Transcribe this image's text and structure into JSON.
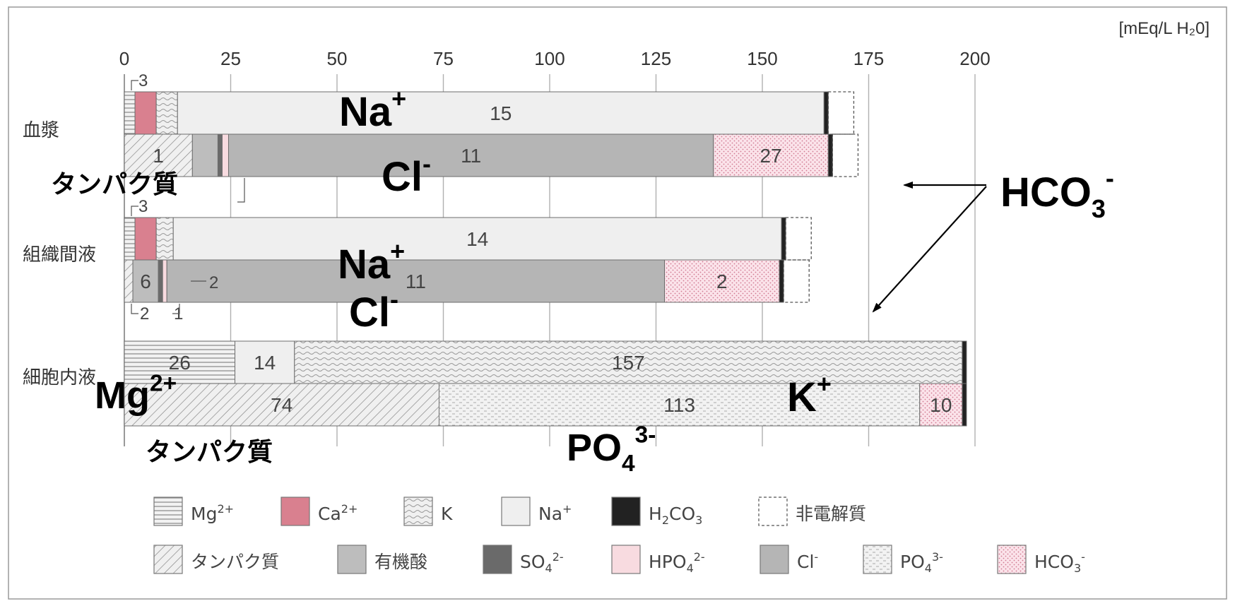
{
  "chart_data": {
    "type": "bar",
    "stacked": true,
    "unit": "[mEq/L  H₂0]",
    "xlim": [
      0,
      200
    ],
    "x_ticks": [
      "0",
      "25",
      "50",
      "75",
      "100",
      "125",
      "150",
      "175",
      "200"
    ],
    "categories": [
      "血漿",
      "組織間液",
      "細胞内液"
    ],
    "grid": "vertical",
    "bars": [
      {
        "category_index": 0,
        "row": "cation",
        "segments": [
          {
            "component": "Mg",
            "value": 2.5
          },
          {
            "component": "Ca",
            "value": 5
          },
          {
            "component": "K",
            "value": 5
          },
          {
            "component": "Na",
            "value": 152,
            "label": "15"
          },
          {
            "component": "H2CO3",
            "value": 1
          },
          {
            "component": "nonelectrolyte",
            "value": 6
          }
        ]
      },
      {
        "category_index": 0,
        "row": "anion",
        "segments": [
          {
            "component": "protein",
            "value": 16,
            "label": "1"
          },
          {
            "component": "organic",
            "value": 6
          },
          {
            "component": "SO4",
            "value": 1
          },
          {
            "component": "HPO4",
            "value": 1.5
          },
          {
            "component": "Cl",
            "value": 114,
            "label": "11"
          },
          {
            "component": "HCO3",
            "value": 27,
            "label": "27"
          },
          {
            "component": "H2CO3",
            "value": 1
          },
          {
            "component": "nonelectrolyte",
            "value": 6
          }
        ]
      },
      {
        "category_index": 1,
        "row": "cation",
        "segments": [
          {
            "component": "Mg",
            "value": 2.5
          },
          {
            "component": "Ca",
            "value": 5
          },
          {
            "component": "K",
            "value": 4
          },
          {
            "component": "Na",
            "value": 143,
            "label": "14"
          },
          {
            "component": "H2CO3",
            "value": 1
          },
          {
            "component": "nonelectrolyte",
            "value": 6
          }
        ]
      },
      {
        "category_index": 1,
        "row": "anion",
        "segments": [
          {
            "component": "protein",
            "value": 2
          },
          {
            "component": "organic",
            "value": 6,
            "label": "6"
          },
          {
            "component": "SO4",
            "value": 1
          },
          {
            "component": "HPO4",
            "value": 1
          },
          {
            "component": "Cl",
            "value": 117,
            "label": "11"
          },
          {
            "component": "HCO3",
            "value": 27,
            "label": "2"
          },
          {
            "component": "H2CO3",
            "value": 1
          },
          {
            "component": "nonelectrolyte",
            "value": 6
          }
        ]
      },
      {
        "category_index": 2,
        "row": "cation",
        "segments": [
          {
            "component": "Mg",
            "value": 26,
            "label": "26"
          },
          {
            "component": "Na",
            "value": 14,
            "label": "14"
          },
          {
            "component": "K",
            "value": 157,
            "label": "157"
          },
          {
            "component": "H2CO3",
            "value": 1
          }
        ]
      },
      {
        "category_index": 2,
        "row": "anion",
        "segments": [
          {
            "component": "protein",
            "value": 74,
            "label": "74"
          },
          {
            "component": "PO4",
            "value": 113,
            "label": "113"
          },
          {
            "component": "HCO3",
            "value": 10,
            "label": "10"
          },
          {
            "component": "H2CO3",
            "value": 1
          }
        ]
      }
    ],
    "small_labels": [
      {
        "text": "3",
        "category_index": 0,
        "row": "cation",
        "anchor": "above-start"
      },
      {
        "text": "3",
        "category_index": 1,
        "row": "cation",
        "anchor": "above-start"
      },
      {
        "text": "2",
        "category_index": 1,
        "row": "anion",
        "anchor": "inside-after-SO4"
      },
      {
        "text": "2",
        "category_index": 1,
        "row": "anion",
        "anchor": "below-start"
      },
      {
        "text": "1",
        "category_index": 1,
        "row": "anion",
        "anchor": "below-SO4"
      }
    ],
    "annotations": [
      {
        "text": "Na",
        "sup": "+",
        "category_index": 0,
        "row": "cation"
      },
      {
        "text": "Cl",
        "sup": "-",
        "category_index": 0,
        "row": "anion"
      },
      {
        "text": "タンパク質",
        "sup": "",
        "category_index": 0,
        "row": "anion-left"
      },
      {
        "text": "Na",
        "sup": "+",
        "category_index": 1,
        "row": "cation"
      },
      {
        "text": "Cl",
        "sup": "-",
        "category_index": 1,
        "row": "anion"
      },
      {
        "text": "Mg",
        "sup": "2+",
        "category_index": 2,
        "row": "cation-left"
      },
      {
        "text": "K",
        "sup": "+",
        "category_index": 2,
        "row": "cation"
      },
      {
        "text": "タンパク質",
        "sup": "",
        "category_index": 2,
        "row": "anion-left"
      },
      {
        "text": "PO",
        "sub": "4",
        "sup": "3-",
        "category_index": 2,
        "row": "anion"
      }
    ],
    "callout": {
      "text": "HCO",
      "sub": "3",
      "sup": "-",
      "points_to": [
        "血漿 HCO3",
        "組織間液 HCO3"
      ]
    },
    "legend": [
      {
        "key": "Mg",
        "label": "Mg",
        "sup": "2+"
      },
      {
        "key": "Ca",
        "label": "Ca",
        "sup": "2+"
      },
      {
        "key": "K",
        "label": "K"
      },
      {
        "key": "Na",
        "label": "Na",
        "sup": "+"
      },
      {
        "key": "H2CO3",
        "label": "H",
        "sub": "2",
        "label2": "CO",
        "sub2": "3"
      },
      {
        "key": "nonelectrolyte",
        "label": "非電解質"
      },
      {
        "key": "protein",
        "label": "タンパク質"
      },
      {
        "key": "organic",
        "label": "有機酸"
      },
      {
        "key": "SO4",
        "label": "SO",
        "sub": "4",
        "sup": "2-"
      },
      {
        "key": "HPO4",
        "label": "HPO",
        "sub": "4",
        "sup": "2-"
      },
      {
        "key": "Cl",
        "label": "Cl",
        "sup": "-"
      },
      {
        "key": "PO4",
        "label": "PO",
        "sub": "4",
        "sup": "3-"
      },
      {
        "key": "HCO3",
        "label": "HCO",
        "sub": "3",
        "sup": "-"
      }
    ]
  }
}
